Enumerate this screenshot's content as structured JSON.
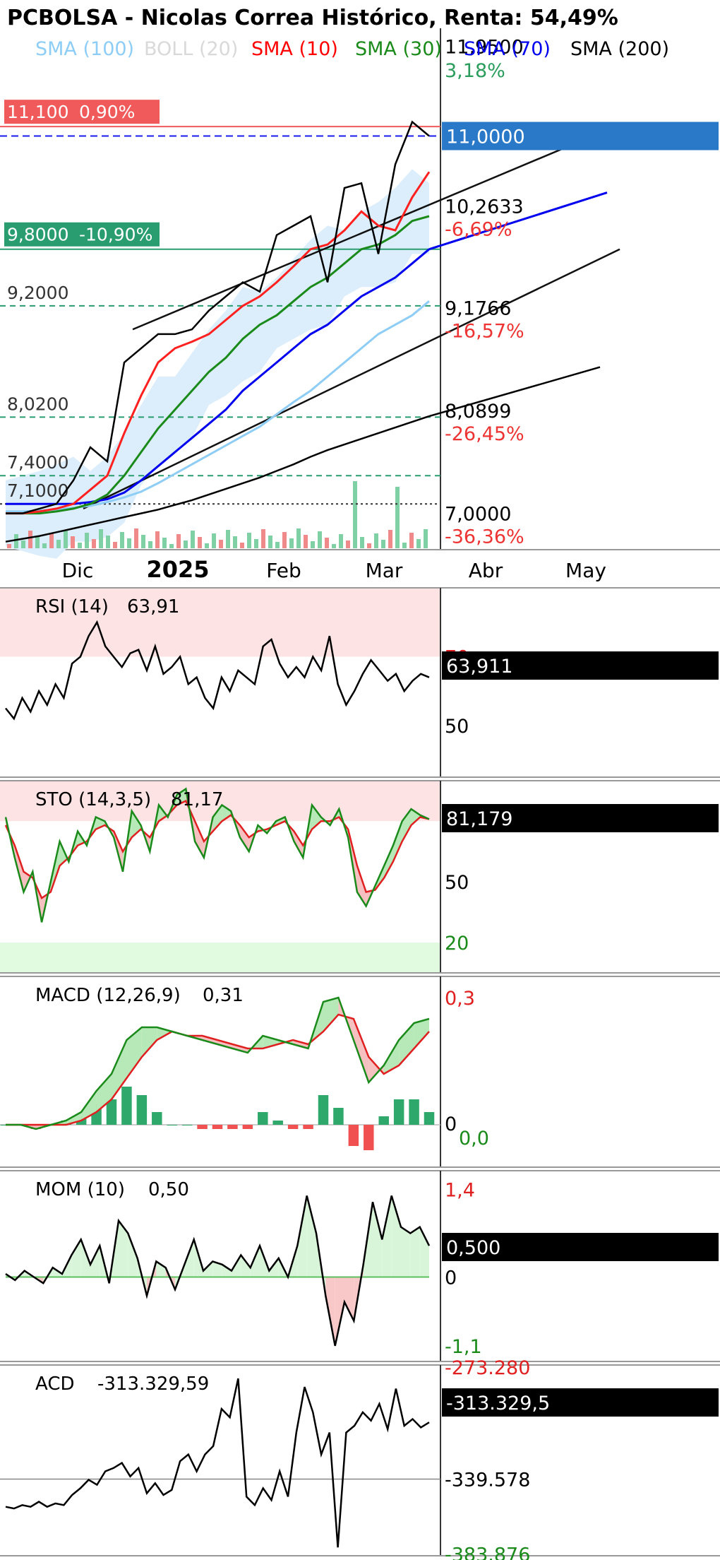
{
  "title": "PCBOLSA - Nicolas Correa Histórico, Renta: 54,49%",
  "legend": [
    {
      "label": "SMA (100)",
      "color": "#8ecdf5"
    },
    {
      "label": "BOLL (20)",
      "color": "#d9d9d9"
    },
    {
      "label": "SMA (10)",
      "color": "#ff0000"
    },
    {
      "label": "SMA (30)",
      "color": "#1a8a1a"
    },
    {
      "label": "SMA (70)",
      "color": "#0000ee"
    },
    {
      "label": "SMA (200)",
      "color": "#000000"
    }
  ],
  "price_axis": {
    "right_labels": [
      {
        "text": "11,9500",
        "value": 11.95,
        "color": "#000000"
      },
      {
        "text": "3,18%",
        "value": 11.7,
        "color": "#2a9d5c"
      },
      {
        "text": "10,2633",
        "value": 10.26,
        "color": "#000000"
      },
      {
        "text": "-6,69%",
        "value": 10.02,
        "color": "#ee3333"
      },
      {
        "text": "9,1766",
        "value": 9.18,
        "color": "#000000"
      },
      {
        "text": "-16,57%",
        "value": 8.94,
        "color": "#ee3333"
      },
      {
        "text": "8,0899",
        "value": 8.09,
        "color": "#000000"
      },
      {
        "text": "-26,45%",
        "value": 7.85,
        "color": "#ee3333"
      },
      {
        "text": "7,0000",
        "value": 7.0,
        "color": "#000000"
      },
      {
        "text": "-36,36%",
        "value": 6.76,
        "color": "#ee3333"
      }
    ],
    "current_price": "11,0000",
    "levels": [
      {
        "price": 11.1,
        "label": "11,100",
        "pct": "0,90%",
        "color": "#f05a5a",
        "style": "solid"
      },
      {
        "price": 9.8,
        "label": "9,8000",
        "pct": "-10,90%",
        "color": "#2a9d70",
        "style": "solid"
      },
      {
        "price": 9.2,
        "label": "9,2000",
        "pct": "",
        "color": "#2a9d70",
        "style": "dashed"
      },
      {
        "price": 8.02,
        "label": "8,0200",
        "pct": "",
        "color": "#2a9d70",
        "style": "dashed"
      },
      {
        "price": 7.4,
        "label": "7,4000",
        "pct": "",
        "color": "#2a9d70",
        "style": "dashed"
      },
      {
        "price": 7.1,
        "label": "7,1000",
        "pct": "",
        "color": "#333333",
        "style": "dotted"
      }
    ]
  },
  "x_axis": {
    "labels": [
      "Dic",
      "2025",
      "Feb",
      "Mar",
      "Abr",
      "May"
    ]
  },
  "chart_data": [
    {
      "type": "line",
      "panel": "price",
      "title": "PCBOLSA - Nicolas Correa Histórico, Renta: 54,49%",
      "ylim": [
        6.63,
        12.03
      ],
      "x": [
        "2024-11-20",
        "2024-11-27",
        "2024-12-04",
        "2024-12-11",
        "2024-12-18",
        "2024-12-25",
        "2025-01-01",
        "2025-01-08",
        "2025-01-15",
        "2025-01-22",
        "2025-01-29",
        "2025-02-05",
        "2025-02-12",
        "2025-02-19",
        "2025-02-26",
        "2025-03-05",
        "2025-03-12",
        "2025-03-19",
        "2025-03-26",
        "2025-04-02",
        "2025-04-09",
        "2025-04-16",
        "2025-04-23",
        "2025-04-30",
        "2025-05-07",
        "2025-05-14"
      ],
      "series": [
        {
          "name": "Close",
          "values": [
            7.0,
            7.0,
            7.05,
            7.1,
            7.35,
            7.7,
            7.55,
            8.6,
            8.75,
            8.9,
            8.9,
            8.95,
            9.15,
            9.3,
            9.45,
            9.35,
            9.95,
            10.05,
            10.15,
            9.45,
            10.45,
            10.5,
            9.75,
            10.7,
            11.15,
            11.0
          ]
        },
        {
          "name": "SMA (10)",
          "values": [
            7.0,
            7.0,
            7.02,
            7.05,
            7.1,
            7.25,
            7.4,
            7.85,
            8.25,
            8.6,
            8.75,
            8.82,
            8.9,
            9.05,
            9.2,
            9.3,
            9.45,
            9.62,
            9.8,
            9.85,
            10.0,
            10.2,
            10.05,
            10.0,
            10.35,
            10.62
          ]
        },
        {
          "name": "SMA (30)",
          "values": [
            7.0,
            7.0,
            7.0,
            7.02,
            7.05,
            7.1,
            7.2,
            7.4,
            7.65,
            7.9,
            8.1,
            8.3,
            8.5,
            8.65,
            8.85,
            9.0,
            9.1,
            9.25,
            9.4,
            9.5,
            9.65,
            9.8,
            9.85,
            9.95,
            10.1,
            10.15
          ]
        },
        {
          "name": "SMA (70)",
          "values": [
            7.1,
            7.1,
            7.1,
            7.1,
            7.1,
            7.12,
            7.15,
            7.22,
            7.35,
            7.5,
            7.65,
            7.8,
            7.95,
            8.1,
            8.3,
            8.45,
            8.6,
            8.75,
            8.9,
            9.0,
            9.15,
            9.3,
            9.4,
            9.5,
            9.65,
            9.8
          ]
        },
        {
          "name": "SMA (100)",
          "values": [
            7.02,
            7.02,
            7.03,
            7.04,
            7.06,
            7.08,
            7.12,
            7.17,
            7.23,
            7.32,
            7.42,
            7.52,
            7.62,
            7.72,
            7.82,
            7.92,
            8.05,
            8.18,
            8.3,
            8.45,
            8.6,
            8.75,
            8.9,
            9.0,
            9.1,
            9.25
          ]
        },
        {
          "name": "SMA (200)",
          "values": [
            6.7,
            6.73,
            6.76,
            6.8,
            6.84,
            6.88,
            6.92,
            6.96,
            7.0,
            7.04,
            7.09,
            7.14,
            7.2,
            7.26,
            7.32,
            7.38,
            7.45,
            7.52,
            7.6,
            7.67,
            7.73,
            7.79,
            7.85,
            7.91,
            7.97,
            8.03
          ]
        }
      ]
    },
    {
      "type": "line",
      "panel": "rsi",
      "title": "RSI (14)",
      "current": "63,91",
      "axis_current": "63,911",
      "ylim": [
        35,
        90
      ],
      "thresholds": [
        {
          "text": "70",
          "value": 70
        },
        {
          "text": "50",
          "value": 50
        }
      ],
      "values": [
        55,
        52,
        58,
        54,
        60,
        56,
        62,
        58,
        68,
        70,
        76,
        80,
        73,
        70,
        67,
        71,
        72,
        66,
        73,
        65,
        67,
        70,
        62,
        64,
        58,
        55,
        64,
        60,
        66,
        64,
        62,
        73,
        75,
        68,
        64,
        67,
        64,
        70,
        66,
        76,
        62,
        56,
        60,
        65,
        69,
        66,
        63,
        65,
        60,
        63,
        65,
        64
      ]
    },
    {
      "type": "line",
      "panel": "sto",
      "title": "STO (14,3,5)",
      "current": "81,17",
      "axis_current": "81,179",
      "ylim": [
        5,
        100
      ],
      "thresholds": [
        {
          "text": "50",
          "value": 50
        },
        {
          "text": "20",
          "value": 20
        }
      ],
      "series": [
        {
          "name": "%K",
          "values": [
            82,
            62,
            45,
            55,
            30,
            50,
            70,
            60,
            75,
            68,
            82,
            80,
            72,
            55,
            85,
            78,
            65,
            88,
            82,
            93,
            96,
            70,
            62,
            82,
            88,
            85,
            72,
            65,
            78,
            74,
            80,
            82,
            70,
            62,
            88,
            82,
            78,
            86,
            72,
            45,
            38,
            48,
            58,
            68,
            80,
            86,
            83,
            81
          ]
        },
        {
          "name": "%D",
          "values": [
            78,
            68,
            55,
            52,
            42,
            45,
            58,
            62,
            68,
            70,
            76,
            78,
            75,
            65,
            72,
            76,
            72,
            80,
            83,
            88,
            90,
            80,
            70,
            75,
            80,
            83,
            78,
            72,
            75,
            76,
            78,
            80,
            75,
            68,
            76,
            80,
            80,
            82,
            76,
            58,
            45,
            46,
            52,
            60,
            70,
            78,
            82,
            81
          ]
        }
      ]
    },
    {
      "type": "line",
      "panel": "macd",
      "title": "MACD (12,26,9)",
      "current": "0,31",
      "ylim": [
        -0.1,
        0.35
      ],
      "thresholds": [
        {
          "text": "0,3",
          "value": 0.3
        },
        {
          "text": "0",
          "value": 0
        },
        {
          "text": "0,0",
          "value": -0.02
        }
      ],
      "series": [
        {
          "name": "MACD",
          "values": [
            0.0,
            0.0,
            -0.01,
            0.0,
            0.01,
            0.03,
            0.08,
            0.12,
            0.2,
            0.23,
            0.23,
            0.22,
            0.21,
            0.2,
            0.19,
            0.18,
            0.17,
            0.21,
            0.2,
            0.19,
            0.18,
            0.29,
            0.3,
            0.2,
            0.1,
            0.14,
            0.2,
            0.24,
            0.25
          ]
        },
        {
          "name": "Signal",
          "values": [
            0.0,
            0.0,
            0.0,
            0.0,
            0.0,
            0.01,
            0.03,
            0.06,
            0.11,
            0.16,
            0.2,
            0.22,
            0.21,
            0.21,
            0.2,
            0.19,
            0.18,
            0.18,
            0.19,
            0.2,
            0.19,
            0.22,
            0.26,
            0.25,
            0.16,
            0.12,
            0.14,
            0.18,
            0.22
          ]
        },
        {
          "name": "Histogram",
          "values": [
            0.0,
            0.0,
            -0.01,
            0.0,
            0.01,
            0.02,
            0.05,
            0.06,
            0.09,
            0.07,
            0.03,
            0.0,
            0.0,
            -0.01,
            -0.01,
            -0.01,
            -0.01,
            0.03,
            0.01,
            -0.01,
            -0.01,
            0.07,
            0.04,
            -0.05,
            -0.06,
            0.02,
            0.06,
            0.06,
            0.03
          ]
        }
      ]
    },
    {
      "type": "area",
      "panel": "mom",
      "title": "MOM (10)",
      "current": "0,50",
      "axis_current": "0,500",
      "ylim": [
        -1.35,
        1.7
      ],
      "thresholds": [
        {
          "text": "1,4",
          "value": 1.4
        },
        {
          "text": "0",
          "value": 0
        },
        {
          "text": "-1,1",
          "value": -1.1
        }
      ],
      "values": [
        0.05,
        -0.05,
        0.1,
        0.0,
        -0.1,
        0.15,
        0.05,
        0.35,
        0.6,
        0.2,
        0.5,
        -0.1,
        0.9,
        0.7,
        0.3,
        -0.3,
        0.25,
        0.15,
        -0.2,
        0.2,
        0.6,
        0.1,
        0.25,
        0.2,
        0.1,
        0.35,
        0.15,
        0.5,
        0.1,
        0.3,
        0.0,
        0.5,
        1.3,
        0.7,
        -0.3,
        -1.1,
        -0.4,
        -0.7,
        0.2,
        1.2,
        0.6,
        1.3,
        0.8,
        0.7,
        0.8,
        0.5
      ]
    },
    {
      "type": "line",
      "panel": "acd",
      "title": "ACD",
      "current": "-313.329,59",
      "axis_current": "-313.329,5",
      "ylim": [
        -385000,
        -272000
      ],
      "thresholds": [
        {
          "text": "-273.280",
          "value": -273280
        },
        {
          "text": "-339.578",
          "value": -339578
        },
        {
          "text": "-383.876",
          "value": -383876
        }
      ],
      "values": [
        -356000,
        -357000,
        -355000,
        -356000,
        -353000,
        -356000,
        -354000,
        -355000,
        -349000,
        -345000,
        -340000,
        -343000,
        -335000,
        -333000,
        -330000,
        -338000,
        -333000,
        -348000,
        -342000,
        -349000,
        -346000,
        -329000,
        -325000,
        -335000,
        -325000,
        -320000,
        -298000,
        -303000,
        -280000,
        -350000,
        -355000,
        -345000,
        -352000,
        -335000,
        -350000,
        -312000,
        -285000,
        -300000,
        -325000,
        -312000,
        -380000,
        -312000,
        -308000,
        -300000,
        -305000,
        -295000,
        -310000,
        -286000,
        -308000,
        -304000,
        -309000,
        -306000
      ]
    }
  ]
}
